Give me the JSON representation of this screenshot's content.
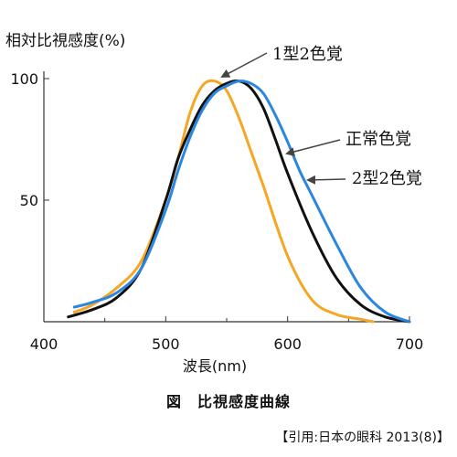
{
  "chart_data": {
    "type": "line",
    "ylabel": "相対比視感度(%)",
    "xlabel": "波長(nm)",
    "xlim": [
      400,
      700
    ],
    "ylim": [
      0,
      100
    ],
    "x_ticks": [
      400,
      500,
      600,
      700
    ],
    "y_ticks": [
      50,
      100
    ],
    "grid": false,
    "legend": "direct labels with arrows",
    "series": [
      {
        "name": "1型2色覚",
        "color": "#f5a623",
        "x": [
          425,
          440,
          460,
          480,
          500,
          510,
          520,
          530,
          540,
          550,
          560,
          570,
          580,
          600,
          620,
          640,
          660,
          670
        ],
        "y": [
          4,
          7,
          14,
          25,
          50,
          67,
          86,
          97,
          99,
          95,
          84,
          70,
          56,
          27,
          9,
          3,
          1,
          0
        ]
      },
      {
        "name": "正常色覚",
        "color": "#111111",
        "x": [
          420,
          440,
          460,
          480,
          500,
          510,
          520,
          530,
          540,
          550,
          560,
          570,
          580,
          590,
          600,
          620,
          640,
          660,
          680,
          700
        ],
        "y": [
          2,
          5,
          10,
          22,
          50,
          67,
          79,
          89,
          95,
          98,
          99,
          96,
          88,
          75,
          61,
          37,
          18,
          7,
          2,
          0
        ]
      },
      {
        "name": "2型2色覚",
        "color": "#2b86e0",
        "x": [
          425,
          440,
          460,
          480,
          500,
          510,
          520,
          530,
          540,
          550,
          560,
          570,
          580,
          590,
          600,
          610,
          620,
          640,
          660,
          680,
          700
        ],
        "y": [
          6,
          8,
          12,
          22,
          46,
          62,
          76,
          87,
          94,
          97,
          99,
          98,
          94,
          85,
          74,
          62,
          52,
          32,
          14,
          4,
          0
        ]
      }
    ]
  },
  "caption": "図　比視感度曲線",
  "source": "【引用:日本の眼科 2013(8)】"
}
